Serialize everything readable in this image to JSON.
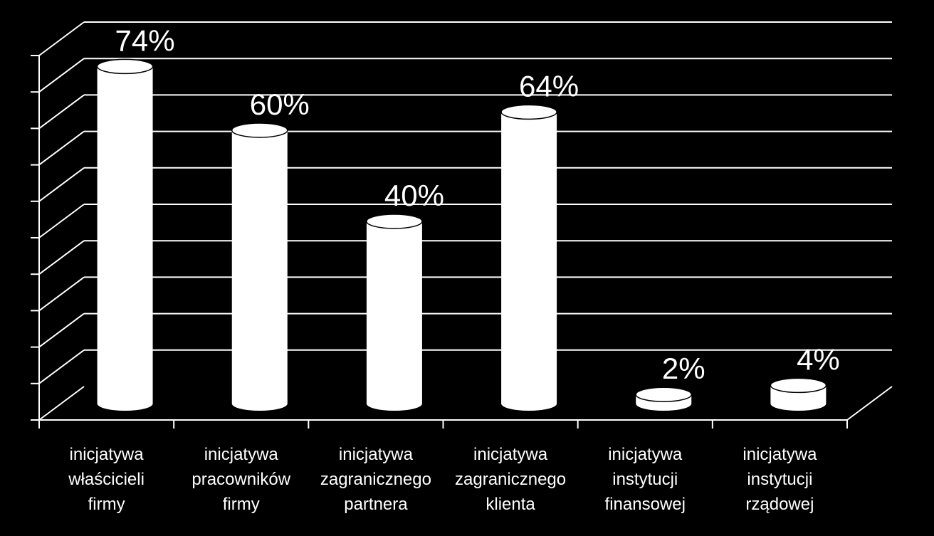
{
  "chart_data": {
    "type": "bar",
    "style": "3d-cylinder",
    "categories": [
      [
        "inicjatywa",
        "właścicieli",
        "firmy"
      ],
      [
        "inicjatywa",
        "pracowników",
        "firmy"
      ],
      [
        "inicjatywa",
        "zagranicznego",
        "partnera"
      ],
      [
        "inicjatywa",
        "zagranicznego",
        "klienta"
      ],
      [
        "inicjatywa",
        "instytucji",
        "finansowej"
      ],
      [
        "inicjatywa",
        "instytucji",
        "rządowej"
      ]
    ],
    "values": [
      74,
      60,
      40,
      64,
      2,
      4
    ],
    "data_labels": [
      "74%",
      "60%",
      "40%",
      "64%",
      "2%",
      "4%"
    ],
    "title": "",
    "xlabel": "",
    "ylabel": "",
    "ylim": [
      0,
      80
    ],
    "grid": true,
    "legend": "none",
    "colors": {
      "background": "#000000",
      "bars": "#ffffff",
      "text": "#ffffff",
      "lines": "#ffffff"
    }
  }
}
